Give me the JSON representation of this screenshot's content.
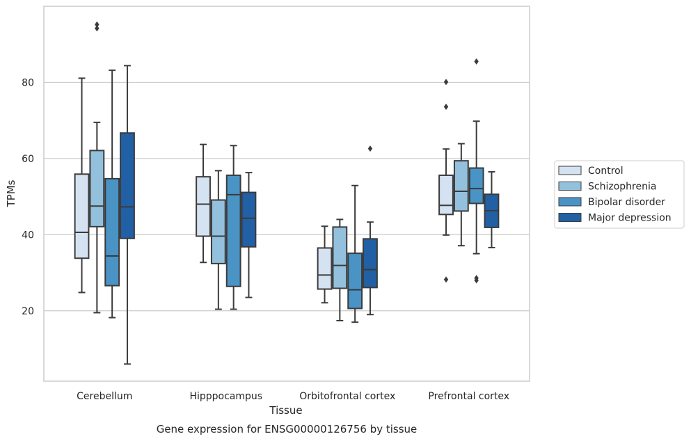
{
  "colors": {
    "Control": "#d4e2f1",
    "Schizophrenia": "#93c0dd",
    "Bipolar disorder": "#4a93c5",
    "Major depression": "#2260a6",
    "box_edge": "#3b3b3b",
    "grid": "#cccccc",
    "frame": "#cccccc"
  },
  "caption": "Gene expression for ENSG00000126756 by tissue",
  "chart_data": {
    "type": "box",
    "xlabel": "Tissue",
    "ylabel": "TPMs",
    "categories": [
      "Cerebellum",
      "Hipppocampus",
      "Orbitofrontal cortex",
      "Prefrontal cortex"
    ],
    "yticks": [
      20,
      40,
      60,
      80
    ],
    "ylim": [
      1.5,
      100
    ],
    "grid": "horizontal",
    "legend_position": "right",
    "series": [
      {
        "name": "Control",
        "boxes": [
          {
            "whislo": 24.8,
            "q1": 33.8,
            "med": 40.6,
            "q3": 55.9,
            "whishi": 81.1,
            "fliers": []
          },
          {
            "whislo": 32.7,
            "q1": 39.6,
            "med": 48.0,
            "q3": 55.2,
            "whishi": 63.7,
            "fliers": []
          },
          {
            "whislo": 22.1,
            "q1": 25.7,
            "med": 29.4,
            "q3": 36.5,
            "whishi": 42.2,
            "fliers": []
          },
          {
            "whislo": 39.9,
            "q1": 45.3,
            "med": 47.7,
            "q3": 55.6,
            "whishi": 62.5,
            "fliers": [
              28.2,
              73.6,
              80.1
            ]
          }
        ]
      },
      {
        "name": "Schizophrenia",
        "boxes": [
          {
            "whislo": 19.5,
            "q1": 42.1,
            "med": 47.5,
            "q3": 62.1,
            "whishi": 69.5,
            "fliers": [
              94.2,
              95.2
            ]
          },
          {
            "whislo": 20.4,
            "q1": 32.4,
            "med": 39.6,
            "q3": 49.1,
            "whishi": 56.8,
            "fliers": []
          },
          {
            "whislo": 17.4,
            "q1": 25.9,
            "med": 31.9,
            "q3": 42.0,
            "whishi": 44.0,
            "fliers": []
          },
          {
            "whislo": 37.1,
            "q1": 46.2,
            "med": 51.4,
            "q3": 59.4,
            "whishi": 63.9,
            "fliers": []
          }
        ]
      },
      {
        "name": "Bipolar disorder",
        "boxes": [
          {
            "whislo": 18.2,
            "q1": 26.6,
            "med": 34.4,
            "q3": 54.7,
            "whishi": 83.2,
            "fliers": []
          },
          {
            "whislo": 20.4,
            "q1": 26.4,
            "med": 50.5,
            "q3": 55.6,
            "whishi": 63.4,
            "fliers": []
          },
          {
            "whislo": 17.0,
            "q1": 20.6,
            "med": 25.5,
            "q3": 35.1,
            "whishi": 52.9,
            "fliers": []
          },
          {
            "whislo": 35.0,
            "q1": 48.2,
            "med": 52.1,
            "q3": 57.5,
            "whishi": 69.8,
            "fliers": [
              28.0,
              28.6,
              85.5
            ]
          }
        ]
      },
      {
        "name": "Major depression",
        "boxes": [
          {
            "whislo": 6.0,
            "q1": 39.0,
            "med": 47.3,
            "q3": 66.7,
            "whishi": 84.4,
            "fliers": []
          },
          {
            "whislo": 23.5,
            "q1": 36.8,
            "med": 44.3,
            "q3": 51.1,
            "whishi": 56.3,
            "fliers": []
          },
          {
            "whislo": 19.0,
            "q1": 26.1,
            "med": 30.8,
            "q3": 38.9,
            "whishi": 43.3,
            "fliers": [
              62.6
            ]
          },
          {
            "whislo": 36.6,
            "q1": 41.9,
            "med": 46.3,
            "q3": 50.6,
            "whishi": 56.5,
            "fliers": []
          }
        ]
      }
    ]
  }
}
